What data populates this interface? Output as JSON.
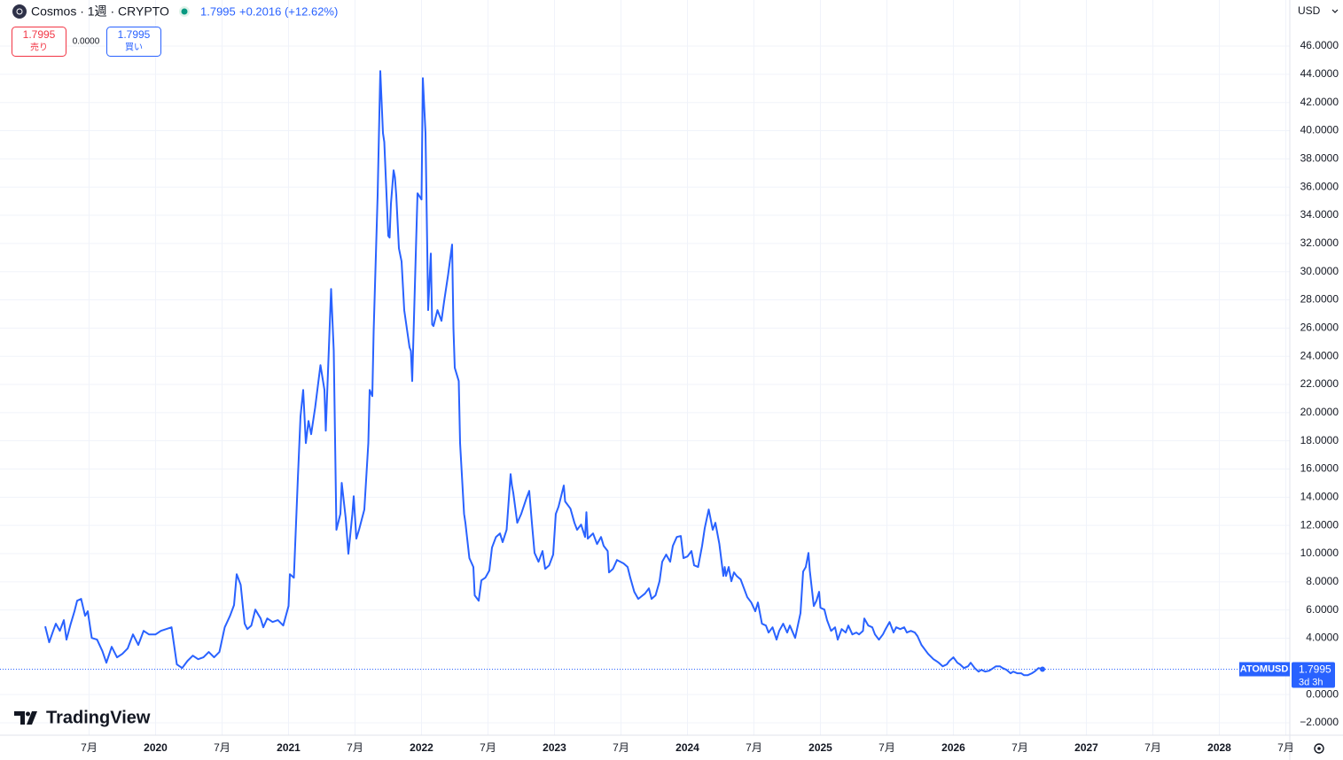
{
  "header": {
    "symbol": "Cosmos · 1週 · CRYPTO",
    "price": "1.7995",
    "change": "+0.2016 (+12.62%)",
    "sell_price": "1.7995",
    "sell_label": "売り",
    "spread": "0.0000",
    "buy_price": "1.7995",
    "buy_label": "買い",
    "currency": "USD"
  },
  "logo": "TradingView",
  "chart_data": {
    "type": "line",
    "x": [
      2019.17,
      2019.2,
      2019.23,
      2019.25,
      2019.28,
      2019.31,
      2019.33,
      2019.36,
      2019.39,
      2019.41,
      2019.44,
      2019.47,
      2019.49,
      2019.52,
      2019.56,
      2019.6,
      2019.63,
      2019.67,
      2019.71,
      2019.75,
      2019.79,
      2019.83,
      2019.87,
      2019.91,
      2019.95,
      2020.0,
      2020.04,
      2020.08,
      2020.12,
      2020.16,
      2020.2,
      2020.24,
      2020.28,
      2020.32,
      2020.36,
      2020.4,
      2020.44,
      2020.48,
      2020.52,
      2020.56,
      2020.59,
      2020.61,
      2020.64,
      2020.67,
      2020.69,
      2020.72,
      2020.75,
      2020.79,
      2020.81,
      2020.84,
      2020.88,
      2020.92,
      2020.96,
      2021.0,
      2021.01,
      2021.04,
      2021.07,
      2021.09,
      2021.11,
      2021.13,
      2021.15,
      2021.17,
      2021.2,
      2021.24,
      2021.27,
      2021.28,
      2021.32,
      2021.34,
      2021.36,
      2021.39,
      2021.4,
      2021.43,
      2021.45,
      2021.48,
      2021.49,
      2021.51,
      2021.53,
      2021.57,
      2021.6,
      2021.61,
      2021.63,
      2021.64,
      2021.67,
      2021.69,
      2021.71,
      2021.72,
      2021.75,
      2021.76,
      2021.77,
      2021.79,
      2021.8,
      2021.81,
      2021.83,
      2021.85,
      2021.87,
      2021.91,
      2021.92,
      2021.93,
      2021.96,
      2021.97,
      2022.0,
      2022.01,
      2022.03,
      2022.05,
      2022.07,
      2022.08,
      2022.09,
      2022.12,
      2022.15,
      2022.17,
      2022.2,
      2022.23,
      2022.24,
      2022.25,
      2022.28,
      2022.29,
      2022.32,
      2022.33,
      2022.36,
      2022.39,
      2022.4,
      2022.43,
      2022.45,
      2022.48,
      2022.51,
      2022.53,
      2022.56,
      2022.59,
      2022.61,
      2022.64,
      2022.67,
      2022.68,
      2022.69,
      2022.72,
      2022.75,
      2022.79,
      2022.81,
      2022.83,
      2022.85,
      2022.88,
      2022.91,
      2022.93,
      2022.96,
      2022.99,
      2023.01,
      2023.03,
      2023.05,
      2023.07,
      2023.08,
      2023.12,
      2023.15,
      2023.17,
      2023.2,
      2023.23,
      2023.24,
      2023.25,
      2023.29,
      2023.32,
      2023.35,
      2023.37,
      2023.4,
      2023.41,
      2023.44,
      2023.47,
      2023.52,
      2023.55,
      2023.57,
      2023.6,
      2023.63,
      2023.68,
      2023.71,
      2023.73,
      2023.76,
      2023.79,
      2023.81,
      2023.84,
      2023.87,
      2023.89,
      2023.92,
      2023.95,
      2023.97,
      2024.0,
      2024.03,
      2024.05,
      2024.08,
      2024.11,
      2024.13,
      2024.16,
      2024.19,
      2024.21,
      2024.24,
      2024.27,
      2024.28,
      2024.29,
      2024.31,
      2024.33,
      2024.35,
      2024.37,
      2024.4,
      2024.43,
      2024.45,
      2024.48,
      2024.51,
      2024.53,
      2024.56,
      2024.59,
      2024.61,
      2024.64,
      2024.67,
      2024.69,
      2024.72,
      2024.75,
      2024.77,
      2024.81,
      2024.85,
      2024.87,
      2024.89,
      2024.91,
      2024.92,
      2024.95,
      2024.97,
      2024.99,
      2025.0,
      2025.03,
      2025.05,
      2025.08,
      2025.11,
      2025.13,
      2025.16,
      2025.19,
      2025.21,
      2025.24,
      2025.27,
      2025.29,
      2025.32,
      2025.33,
      2025.36,
      2025.39,
      2025.41,
      2025.44,
      2025.47,
      2025.49,
      2025.52,
      2025.55,
      2025.57,
      2025.6,
      2025.63,
      2025.65,
      2025.68,
      2025.71,
      2025.73,
      2025.76,
      2025.79,
      2025.81,
      2025.85,
      2025.87,
      2025.89,
      2025.92,
      2025.95,
      2025.97,
      2026.0,
      2026.03,
      2026.05,
      2026.08,
      2026.11,
      2026.13,
      2026.16,
      2026.19,
      2026.21,
      2026.24,
      2026.27,
      2026.29,
      2026.32,
      2026.35,
      2026.37,
      2026.4,
      2026.43,
      2026.45,
      2026.48,
      2026.51,
      2026.53,
      2026.56,
      2026.59,
      2026.61,
      2026.64,
      2026.67
    ],
    "series": [
      {
        "name": "ATOMUSD",
        "color": "#2962ff",
        "values": [
          4.84,
          3.71,
          4.52,
          5.03,
          4.52,
          5.28,
          3.9,
          4.96,
          5.91,
          6.66,
          6.79,
          5.59,
          5.91,
          4.02,
          3.9,
          3.08,
          2.26,
          3.39,
          2.64,
          2.89,
          3.27,
          4.27,
          3.52,
          4.52,
          4.27,
          4.27,
          4.52,
          4.65,
          4.77,
          2.14,
          1.88,
          2.39,
          2.76,
          2.51,
          2.64,
          3.02,
          2.64,
          3.02,
          4.77,
          5.59,
          6.35,
          8.54,
          7.79,
          5.03,
          4.65,
          4.9,
          6.03,
          5.4,
          4.77,
          5.4,
          5.15,
          5.28,
          4.9,
          6.28,
          8.54,
          8.29,
          15.33,
          19.73,
          21.61,
          17.84,
          19.41,
          18.47,
          20.36,
          23.37,
          21.61,
          18.72,
          28.77,
          24.38,
          11.69,
          12.82,
          15.02,
          12.5,
          9.99,
          12.82,
          14.07,
          11.06,
          11.69,
          13.13,
          17.84,
          21.61,
          21.17,
          25.76,
          35.43,
          44.23,
          39.83,
          39.2,
          32.54,
          32.42,
          34.81,
          37.19,
          36.69,
          35.43,
          31.66,
          30.72,
          27.27,
          24.63,
          24.38,
          22.24,
          32.29,
          35.56,
          35.12,
          43.73,
          39.83,
          27.27,
          31.29,
          26.26,
          26.14,
          27.27,
          26.51,
          27.89,
          29.78,
          31.92,
          26.01,
          23.18,
          22.24,
          17.84,
          12.82,
          12.19,
          9.68,
          9.05,
          7.04,
          6.66,
          8.1,
          8.29,
          8.8,
          10.43,
          11.18,
          11.43,
          10.81,
          11.69,
          15.64,
          14.83,
          14.32,
          12.19,
          12.82,
          13.95,
          14.45,
          12.19,
          10.05,
          9.42,
          10.18,
          8.92,
          9.17,
          9.93,
          12.82,
          13.32,
          14.07,
          14.83,
          13.7,
          13.19,
          12.19,
          11.69,
          12.06,
          11.18,
          12.94,
          11.06,
          11.43,
          10.68,
          11.18,
          10.55,
          10.18,
          8.67,
          8.92,
          9.55,
          9.3,
          9.05,
          8.29,
          7.29,
          6.79,
          7.16,
          7.54,
          6.79,
          7.04,
          8.04,
          9.42,
          9.93,
          9.42,
          10.55,
          11.18,
          11.25,
          9.68,
          9.8,
          10.18,
          9.17,
          9.05,
          10.55,
          11.81,
          13.13,
          11.69,
          12.19,
          10.68,
          8.42,
          9.05,
          8.42,
          9.05,
          8.04,
          8.67,
          8.42,
          8.17,
          7.41,
          6.91,
          6.53,
          5.91,
          6.53,
          5.03,
          4.9,
          4.4,
          4.77,
          3.9,
          4.52,
          5.03,
          4.4,
          4.9,
          4.02,
          5.78,
          8.73,
          9.05,
          10.05,
          8.8,
          6.28,
          6.66,
          7.29,
          6.16,
          6.03,
          5.28,
          4.52,
          4.77,
          3.9,
          4.65,
          4.4,
          4.9,
          4.27,
          4.4,
          4.27,
          4.52,
          5.4,
          4.9,
          4.77,
          4.27,
          3.9,
          4.27,
          4.65,
          5.15,
          4.4,
          4.77,
          4.65,
          4.77,
          4.4,
          4.52,
          4.4,
          4.15,
          3.52,
          3.14,
          2.89,
          2.51,
          2.39,
          2.26,
          2.01,
          2.14,
          2.39,
          2.64,
          2.26,
          2.14,
          1.88,
          2.01,
          2.26,
          1.88,
          1.63,
          1.76,
          1.63,
          1.7,
          1.82,
          2.01,
          2.01,
          1.88,
          1.76,
          1.51,
          1.63,
          1.51,
          1.51,
          1.38,
          1.38,
          1.51,
          1.63,
          1.88,
          1.7995
        ]
      }
    ],
    "countdown": "3d 3h",
    "xlim": [
      2018.83,
      2028.53
    ],
    "xticks": [
      {
        "value": 2019.5,
        "label": "7月"
      },
      2020,
      {
        "value": 2020.5,
        "label": "7月"
      },
      2021,
      {
        "value": 2021.5,
        "label": "7月"
      },
      2022,
      {
        "value": 2022.5,
        "label": "7月"
      },
      2023,
      {
        "value": 2023.5,
        "label": "7月"
      },
      2024,
      {
        "value": 2024.5,
        "label": "7月"
      },
      2025,
      {
        "value": 2025.5,
        "label": "7月"
      },
      2026,
      {
        "value": 2026.5,
        "label": "7月"
      },
      2027,
      {
        "value": 2027.5,
        "label": "7月"
      },
      2028,
      {
        "value": 2028.5,
        "label": "7月"
      }
    ],
    "ylim": [
      -2.88,
      49.27
    ],
    "yticks": [
      {
        "value": -2,
        "label": "−2.0000"
      },
      {
        "value": 0,
        "label": "0.0000"
      },
      {
        "value": 4,
        "label": "4.0000"
      },
      {
        "value": 6,
        "label": "6.0000"
      },
      {
        "value": 8,
        "label": "8.0000"
      },
      {
        "value": 10,
        "label": "10.0000"
      },
      {
        "value": 12,
        "label": "12.0000"
      },
      {
        "value": 14,
        "label": "14.0000"
      },
      {
        "value": 16,
        "label": "16.0000"
      },
      {
        "value": 18,
        "label": "18.0000"
      },
      {
        "value": 20,
        "label": "20.0000"
      },
      {
        "value": 22,
        "label": "22.0000"
      },
      {
        "value": 24,
        "label": "24.0000"
      },
      {
        "value": 26,
        "label": "26.0000"
      },
      {
        "value": 28,
        "label": "28.0000"
      },
      {
        "value": 30,
        "label": "30.0000"
      },
      {
        "value": 32,
        "label": "32.0000"
      },
      {
        "value": 34,
        "label": "34.0000"
      },
      {
        "value": 36,
        "label": "36.0000"
      },
      {
        "value": 38,
        "label": "38.0000"
      },
      {
        "value": 40,
        "label": "40.0000"
      },
      {
        "value": 42,
        "label": "42.0000"
      },
      {
        "value": 44,
        "label": "44.0000"
      },
      {
        "value": 46,
        "label": "46.0000"
      }
    ],
    "grid": true
  }
}
